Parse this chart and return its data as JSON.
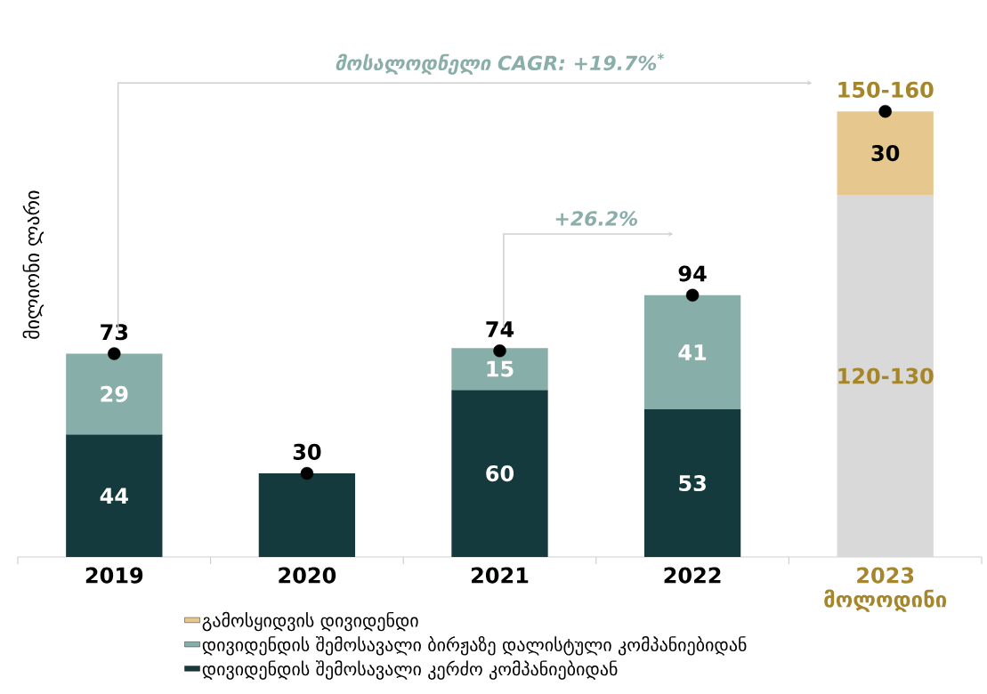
{
  "chart_data": {
    "type": "bar",
    "stacked": true,
    "ylabel": "მილიონი ლარი",
    "categories": [
      "2019",
      "2020",
      "2021",
      "2022",
      "2023 მოლოდინი"
    ],
    "series": [
      {
        "name": "დივიდენდის შემოსავალი კერძო კომპანიებიდან",
        "color": "#143a3e",
        "values": [
          44,
          30,
          60,
          53,
          null
        ],
        "value_labels": [
          "44",
          null,
          "60",
          "53",
          null
        ]
      },
      {
        "name": "დივიდენდის შემოსავალი ბირჟაზე დალისტული კომპანიებიდან",
        "color": "#88aea9",
        "values": [
          29,
          null,
          15,
          41,
          null
        ],
        "value_labels": [
          "29",
          null,
          "15",
          "41",
          null
        ]
      },
      {
        "color": "#d9d9d9",
        "values": [
          null,
          null,
          null,
          null,
          130
        ],
        "value_labels": [
          null,
          null,
          null,
          null,
          "120-130"
        ]
      },
      {
        "name": "გამოსყიდვის დივიდენდი",
        "color": "#e6c88e",
        "values": [
          null,
          null,
          null,
          null,
          30
        ],
        "value_labels": [
          null,
          null,
          null,
          null,
          "30"
        ]
      },
      {
        "type": "scatter",
        "color": "#000000",
        "marker": "circle",
        "values": [
          73,
          30,
          74,
          94,
          160
        ],
        "value_labels": [
          "73",
          "30",
          "74",
          "94",
          "150-160"
        ]
      }
    ],
    "annotations": [
      "მოსალოდნელი CAGR: +19.7%$^{*}$",
      "+26.2%"
    ],
    "legend": "bottom"
  }
}
